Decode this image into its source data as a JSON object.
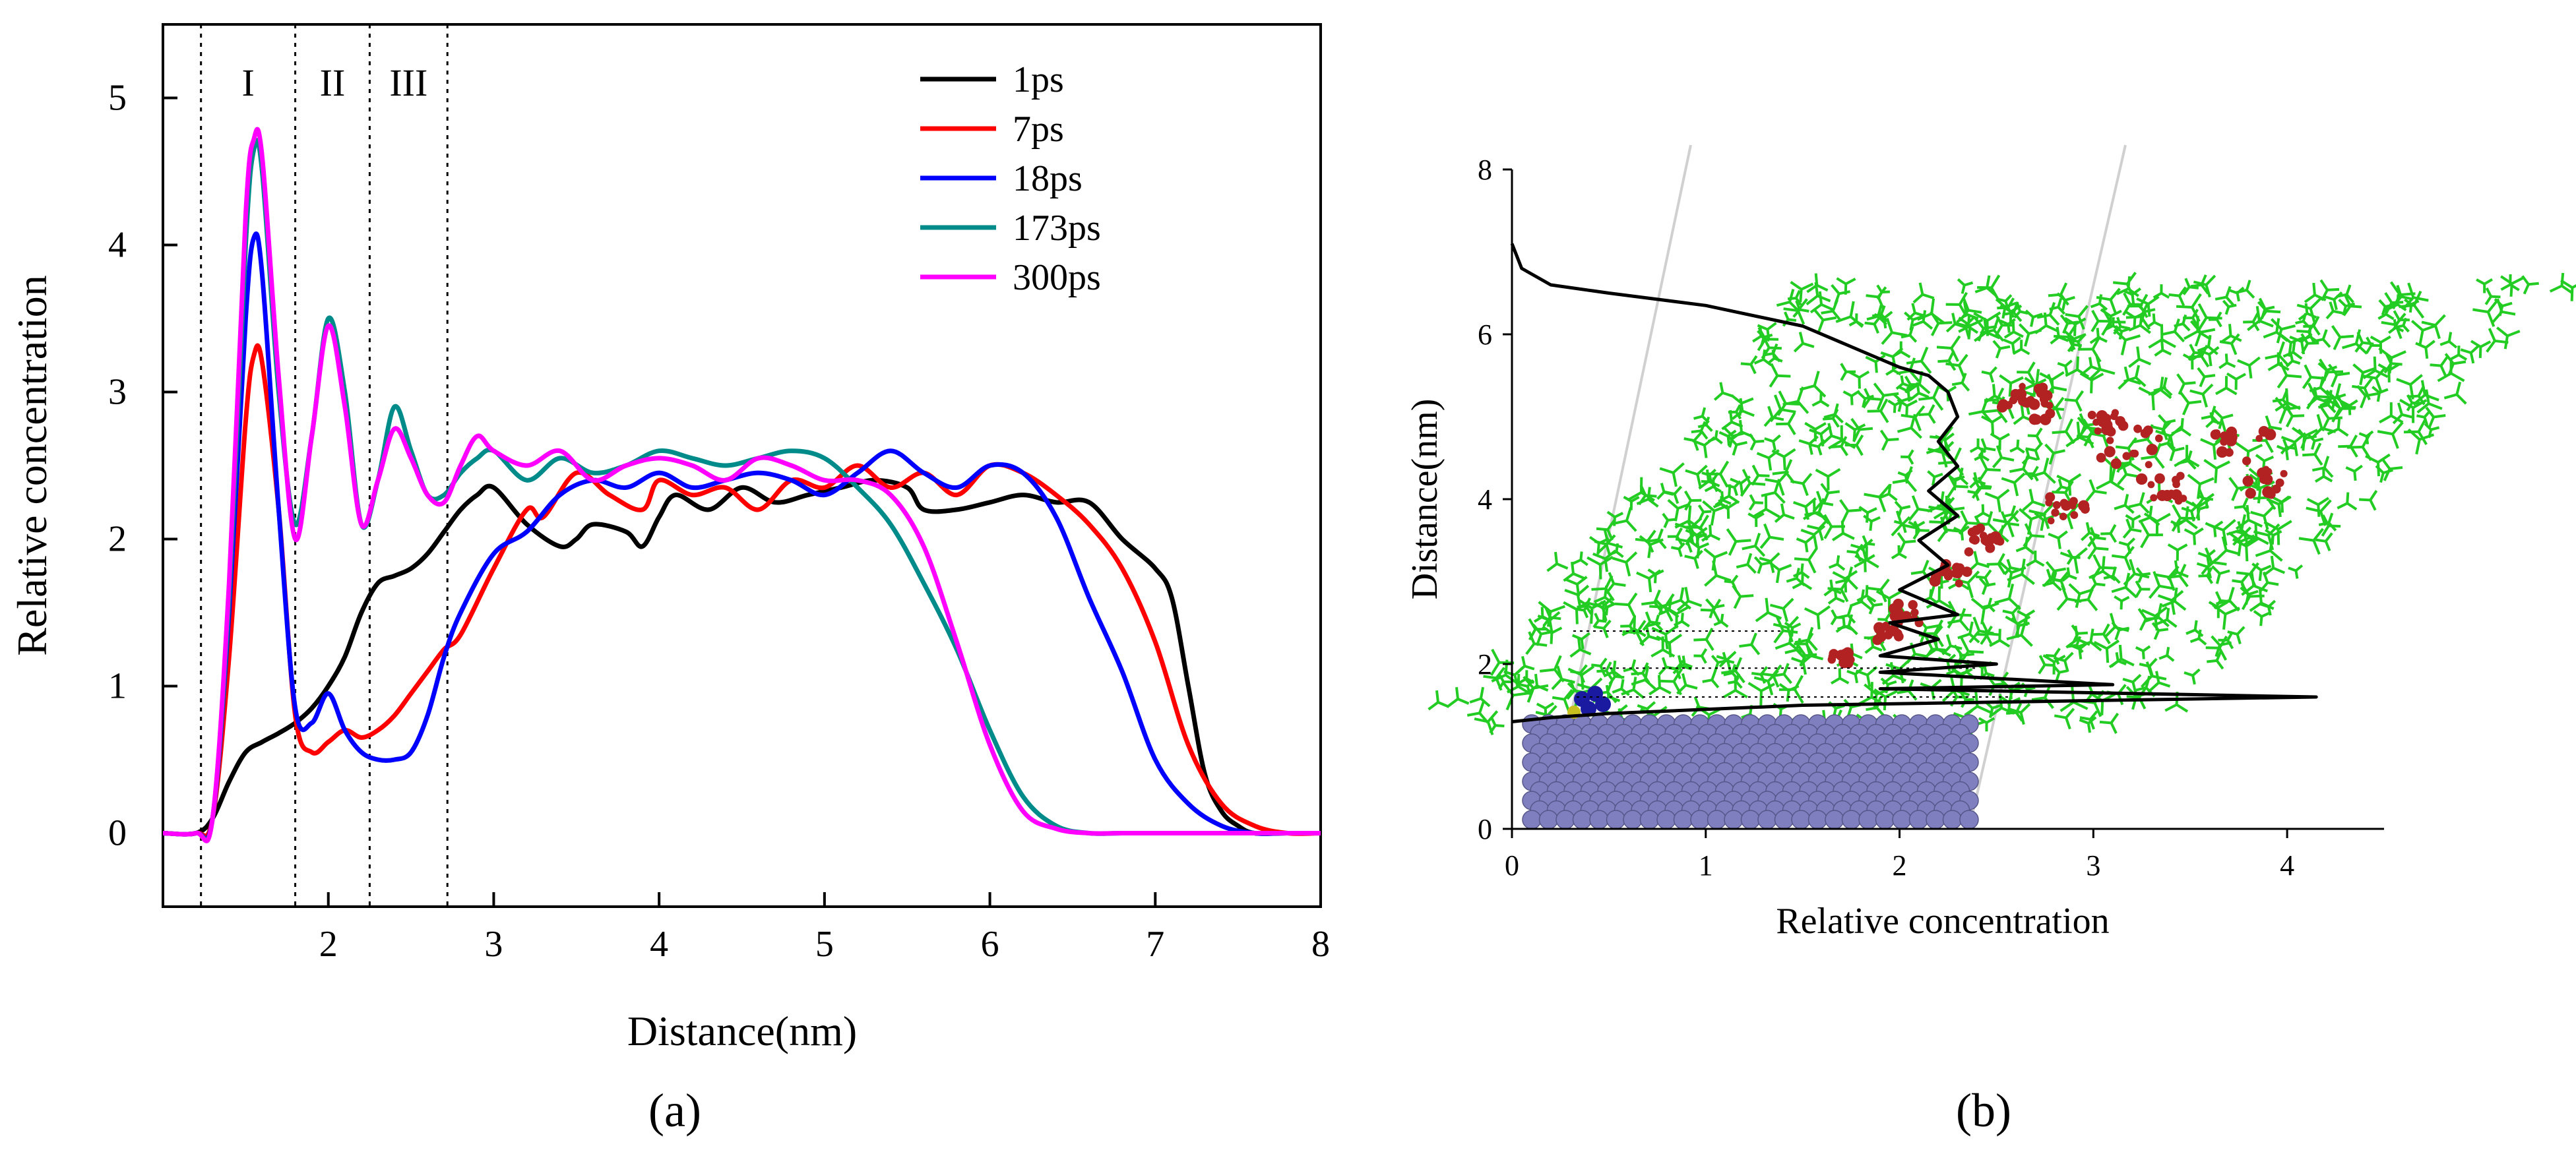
{
  "figure": {
    "caption_a": "(a)",
    "caption_b": "(b)"
  },
  "colors": {
    "1ps": "#000000",
    "7ps": "#ff0000",
    "18ps": "#0000ff",
    "173ps": "#008b8b",
    "300ps": "#ff00ff",
    "molecule_green": "#22cc22",
    "molecule_red": "#b22222",
    "substrate": "#7f7fbf",
    "ion_blue": "#1a1aa0"
  },
  "chart_data": [
    {
      "id": "a",
      "type": "line",
      "title": "",
      "xlabel": "Distance(nm)",
      "ylabel": "Relative concentration",
      "xlim": [
        1,
        8
      ],
      "ylim": [
        -0.5,
        5.5
      ],
      "xticks": [
        2,
        3,
        4,
        5,
        6,
        7,
        8
      ],
      "yticks": [
        0,
        1,
        2,
        3,
        4,
        5
      ],
      "regions": [
        {
          "label": "I",
          "from": 1.23,
          "to": 1.8
        },
        {
          "label": "II",
          "from": 1.8,
          "to": 2.25
        },
        {
          "label": "III",
          "from": 2.25,
          "to": 2.72
        }
      ],
      "legend": "top-right",
      "series": [
        {
          "name": "1ps",
          "color": "#000000",
          "x": [
            1,
            1.2,
            1.3,
            1.4,
            1.5,
            1.6,
            1.7,
            1.8,
            1.9,
            2.0,
            2.1,
            2.2,
            2.3,
            2.4,
            2.5,
            2.6,
            2.7,
            2.8,
            2.9,
            3.0,
            3.2,
            3.4,
            3.5,
            3.6,
            3.8,
            3.9,
            4.0,
            4.1,
            4.3,
            4.5,
            4.7,
            4.9,
            5.1,
            5.3,
            5.5,
            5.6,
            5.8,
            6.0,
            6.2,
            6.4,
            6.6,
            6.8,
            7.0,
            7.1,
            7.2,
            7.3,
            7.4,
            7.5,
            7.6,
            7.8,
            8.0
          ],
          "y": [
            0,
            0,
            0.1,
            0.35,
            0.55,
            0.62,
            0.68,
            0.75,
            0.85,
            1.0,
            1.2,
            1.5,
            1.7,
            1.75,
            1.8,
            1.9,
            2.05,
            2.2,
            2.3,
            2.35,
            2.1,
            1.95,
            2.0,
            2.1,
            2.05,
            1.95,
            2.15,
            2.3,
            2.2,
            2.35,
            2.25,
            2.3,
            2.35,
            2.4,
            2.35,
            2.2,
            2.2,
            2.25,
            2.3,
            2.25,
            2.25,
            2.0,
            1.8,
            1.6,
            1.0,
            0.4,
            0.15,
            0.05,
            0,
            0,
            0
          ]
        },
        {
          "name": "7ps",
          "color": "#ff0000",
          "x": [
            1,
            1.2,
            1.3,
            1.4,
            1.5,
            1.55,
            1.6,
            1.7,
            1.8,
            1.9,
            2.0,
            2.1,
            2.2,
            2.3,
            2.4,
            2.5,
            2.6,
            2.7,
            2.8,
            3.0,
            3.2,
            3.3,
            3.5,
            3.7,
            3.9,
            4.0,
            4.2,
            4.4,
            4.6,
            4.8,
            5.0,
            5.2,
            5.4,
            5.6,
            5.8,
            6.0,
            6.2,
            6.4,
            6.6,
            6.8,
            7.0,
            7.2,
            7.4,
            7.6,
            7.8,
            8.0
          ],
          "y": [
            0,
            0,
            0.1,
            1.2,
            2.8,
            3.25,
            3.2,
            2.2,
            0.8,
            0.55,
            0.62,
            0.7,
            0.65,
            0.7,
            0.8,
            0.95,
            1.1,
            1.25,
            1.35,
            1.8,
            2.2,
            2.15,
            2.45,
            2.3,
            2.2,
            2.4,
            2.3,
            2.35,
            2.2,
            2.4,
            2.35,
            2.5,
            2.35,
            2.45,
            2.3,
            2.5,
            2.45,
            2.3,
            2.1,
            1.8,
            1.3,
            0.6,
            0.2,
            0.05,
            0,
            0
          ]
        },
        {
          "name": "18ps",
          "color": "#0000ff",
          "x": [
            1,
            1.2,
            1.3,
            1.4,
            1.5,
            1.55,
            1.6,
            1.7,
            1.8,
            1.9,
            2.0,
            2.1,
            2.2,
            2.3,
            2.4,
            2.5,
            2.6,
            2.7,
            2.8,
            3.0,
            3.2,
            3.4,
            3.6,
            3.8,
            4.0,
            4.2,
            4.4,
            4.6,
            4.8,
            5.0,
            5.2,
            5.4,
            5.6,
            5.8,
            6.0,
            6.2,
            6.4,
            6.6,
            6.8,
            7.0,
            7.2,
            7.4,
            7.6,
            7.8,
            8.0
          ],
          "y": [
            0,
            0,
            0.1,
            1.5,
            3.5,
            4.05,
            3.8,
            2.2,
            0.85,
            0.75,
            0.95,
            0.7,
            0.55,
            0.5,
            0.5,
            0.55,
            0.8,
            1.2,
            1.5,
            1.9,
            2.05,
            2.3,
            2.4,
            2.35,
            2.45,
            2.35,
            2.4,
            2.45,
            2.4,
            2.3,
            2.45,
            2.6,
            2.45,
            2.35,
            2.5,
            2.45,
            2.15,
            1.6,
            1.1,
            0.5,
            0.2,
            0.05,
            0,
            0,
            0
          ]
        },
        {
          "name": "173ps",
          "color": "#008b8b",
          "x": [
            1,
            1.2,
            1.3,
            1.4,
            1.5,
            1.55,
            1.6,
            1.7,
            1.8,
            1.9,
            2.0,
            2.1,
            2.2,
            2.3,
            2.4,
            2.5,
            2.6,
            2.7,
            2.8,
            2.9,
            3.0,
            3.2,
            3.4,
            3.6,
            3.8,
            4.0,
            4.2,
            4.4,
            4.6,
            4.8,
            5.0,
            5.2,
            5.4,
            5.6,
            5.8,
            6.0,
            6.2,
            6.4,
            6.6,
            6.8,
            7.0,
            7.5,
            8.0
          ],
          "y": [
            0,
            0,
            0.1,
            1.6,
            4.0,
            4.65,
            4.5,
            3.0,
            2.1,
            2.7,
            3.5,
            3.0,
            2.1,
            2.4,
            2.9,
            2.6,
            2.3,
            2.3,
            2.45,
            2.55,
            2.6,
            2.4,
            2.55,
            2.45,
            2.5,
            2.6,
            2.55,
            2.5,
            2.55,
            2.6,
            2.55,
            2.35,
            2.1,
            1.7,
            1.25,
            0.7,
            0.25,
            0.05,
            0,
            0,
            0,
            0,
            0
          ]
        },
        {
          "name": "300ps",
          "color": "#ff00ff",
          "x": [
            1,
            1.2,
            1.3,
            1.4,
            1.5,
            1.55,
            1.6,
            1.7,
            1.8,
            1.9,
            2.0,
            2.1,
            2.2,
            2.3,
            2.4,
            2.5,
            2.6,
            2.7,
            2.8,
            2.9,
            3.0,
            3.2,
            3.4,
            3.6,
            3.8,
            4.0,
            4.2,
            4.4,
            4.6,
            4.8,
            5.0,
            5.2,
            5.4,
            5.6,
            5.8,
            6.0,
            6.2,
            6.4,
            6.6,
            6.8,
            7.0,
            7.5,
            8.0
          ],
          "y": [
            0,
            0,
            0.1,
            1.7,
            4.2,
            4.72,
            4.6,
            3.1,
            2.0,
            2.7,
            3.45,
            2.9,
            2.1,
            2.4,
            2.75,
            2.55,
            2.3,
            2.25,
            2.5,
            2.7,
            2.6,
            2.5,
            2.6,
            2.4,
            2.5,
            2.55,
            2.5,
            2.4,
            2.55,
            2.5,
            2.4,
            2.4,
            2.3,
            1.95,
            1.3,
            0.6,
            0.15,
            0.03,
            0,
            0,
            0,
            0,
            0
          ]
        }
      ]
    },
    {
      "id": "b",
      "type": "line",
      "title": "",
      "xlabel": "Relative concentration",
      "ylabel": "Distance(nm)",
      "xlim": [
        0,
        4.5
      ],
      "ylim": [
        0,
        8
      ],
      "xticks": [
        0,
        1,
        2,
        3,
        4
      ],
      "yticks": [
        0,
        2,
        4,
        6,
        8
      ],
      "series": [
        {
          "name": "concentration-profile",
          "color": "#000000",
          "x": [
            0,
            0.05,
            0.2,
            0.5,
            1.0,
            1.5,
            1.8,
            2.0,
            2.15,
            2.25,
            2.3,
            2.2,
            2.3,
            2.15,
            2.3,
            2.1,
            2.25,
            2.0,
            2.3,
            1.95,
            2.2,
            1.9,
            2.5,
            1.9,
            3.1,
            1.9,
            4.15,
            1.5,
            1.0,
            0.5,
            0.2,
            0
          ],
          "y": [
            7.1,
            6.8,
            6.6,
            6.5,
            6.35,
            6.1,
            5.8,
            5.6,
            5.5,
            5.3,
            5.0,
            4.7,
            4.4,
            4.1,
            3.8,
            3.5,
            3.2,
            2.9,
            2.6,
            2.5,
            2.3,
            2.1,
            2.0,
            1.9,
            1.75,
            1.7,
            1.6,
            1.5,
            1.45,
            1.4,
            1.35,
            1.3
          ]
        }
      ]
    }
  ]
}
